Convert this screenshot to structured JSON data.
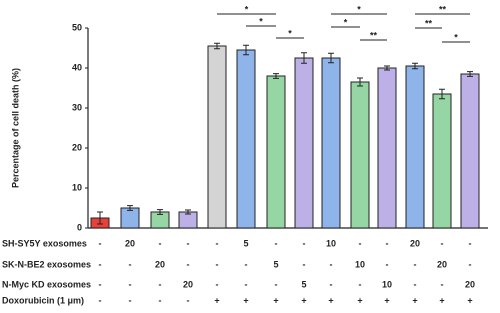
{
  "chart_data": {
    "type": "bar",
    "y_label": "Percentage of cell death (%)",
    "ylim": [
      0,
      50
    ],
    "yticks": [
      0,
      10,
      20,
      30,
      40,
      50
    ],
    "values": [
      2.5,
      5,
      4,
      4,
      45.5,
      44.5,
      38,
      42.5,
      42.5,
      36.5,
      40,
      40.5,
      33.5,
      38.5
    ],
    "errors": [
      1.5,
      0.6,
      0.6,
      0.5,
      0.7,
      1.2,
      0.6,
      1.3,
      1.2,
      1.0,
      0.5,
      0.7,
      1.2,
      0.6
    ],
    "colors": [
      "#e8413c",
      "#8fb4ea",
      "#95d6a4",
      "#bdb0e6",
      "#d4d4d4",
      "#8fb4ea",
      "#95d6a4",
      "#bdb0e6",
      "#8fb4ea",
      "#95d6a4",
      "#bdb0e6",
      "#8fb4ea",
      "#95d6a4",
      "#bdb0e6"
    ],
    "significance": [
      "*",
      "*",
      "*",
      "*",
      "*",
      "**",
      "**",
      "**",
      "*"
    ],
    "condition_table": [
      {
        "label": "SH-SY5Y exosomes",
        "cells": [
          "-",
          "20",
          "-",
          "-",
          "-",
          "5",
          "-",
          "-",
          "10",
          "-",
          "-",
          "20",
          "-",
          "-"
        ]
      },
      {
        "label": "SK-N-BE2 exosomes",
        "cells": [
          "-",
          "-",
          "20",
          "-",
          "-",
          "-",
          "5",
          "-",
          "-",
          "10",
          "-",
          "-",
          "20",
          "-"
        ]
      },
      {
        "label": "N-Myc KD exosomes",
        "cells": [
          "-",
          "-",
          "-",
          "20",
          "-",
          "-",
          "-",
          "5",
          "-",
          "-",
          "10",
          "-",
          "-",
          "20"
        ]
      },
      {
        "label": "Doxorubicin (1 μm)",
        "cells": [
          "-",
          "-",
          "-",
          "-",
          "+",
          "+",
          "+",
          "+",
          "+",
          "+",
          "+",
          "+",
          "+",
          "+"
        ]
      }
    ]
  }
}
